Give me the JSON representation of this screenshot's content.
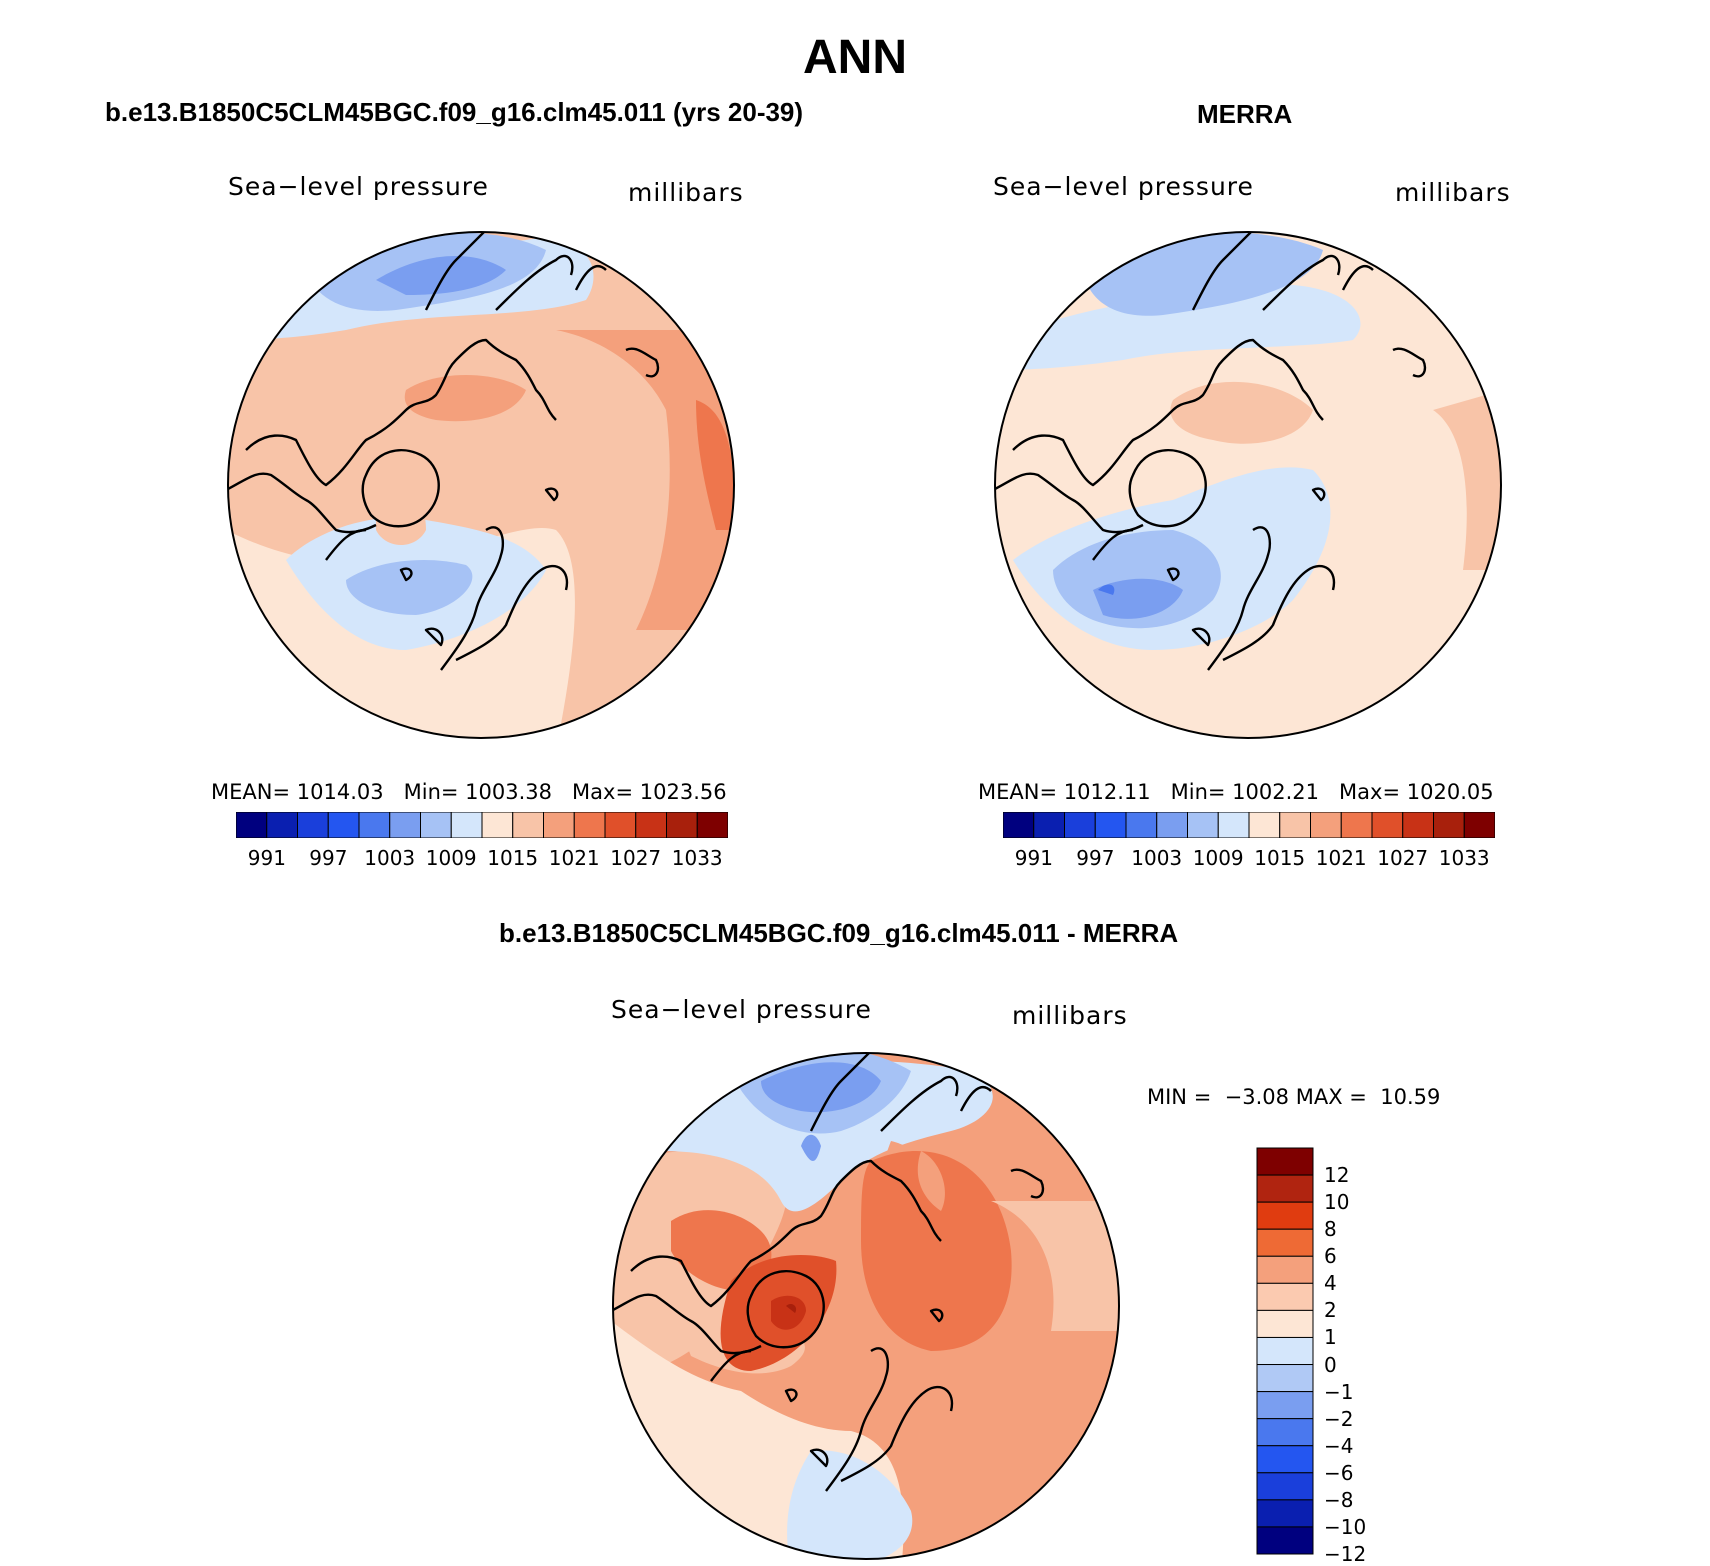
{
  "title": "ANN",
  "panels": [
    {
      "id": "model",
      "heading": "b.e13.B1850C5CLM45BGC.f09_g16.clm45.011 (yrs 20-39)",
      "variable": "Sea−level pressure",
      "units": "millibars",
      "stats": {
        "mean_label": "MEAN=",
        "mean": "1014.03",
        "min_label": "Min=",
        "min": "1003.38",
        "max_label": "Max=",
        "max": "1023.56"
      }
    },
    {
      "id": "obs",
      "heading": "MERRA",
      "variable": "Sea−level pressure",
      "units": "millibars",
      "stats": {
        "mean_label": "MEAN=",
        "mean": "1012.11",
        "min_label": "Min=",
        "min": "1002.21",
        "max_label": "Max=",
        "max": "1020.05"
      }
    },
    {
      "id": "diff",
      "heading": "b.e13.B1850C5CLM45BGC.f09_g16.clm45.011 - MERRA",
      "variable": "Sea−level pressure",
      "units": "millibars",
      "stats": {
        "min_label": "MIN =",
        "min": "−3.08",
        "max_label": "MAX =",
        "max": "10.59"
      }
    }
  ],
  "colorbars": {
    "absolute": {
      "colors": [
        "#00007f",
        "#0a1fb0",
        "#1a3fdb",
        "#2456f0",
        "#4a78ee",
        "#7a9ef0",
        "#a6c2f5",
        "#d4e6fb",
        "#fde6d5",
        "#f8c4a8",
        "#f4a07c",
        "#ee764d",
        "#e0502a",
        "#c83216",
        "#a8200c",
        "#7e0000"
      ],
      "labels": [
        "991",
        "997",
        "1003",
        "1009",
        "1015",
        "1021",
        "1027",
        "1033"
      ]
    },
    "difference": {
      "colors": [
        "#7e0000",
        "#b02410",
        "#e03c10",
        "#ee6a35",
        "#f4a07c",
        "#fbcab0",
        "#fde6d5",
        "#d4e6fb",
        "#b0c9f5",
        "#7a9ef0",
        "#4a78ee",
        "#2456f0",
        "#1a3fdb",
        "#0a1fb0",
        "#00007f"
      ],
      "labels": [
        "12",
        "10",
        "8",
        "6",
        "4",
        "2",
        "1",
        "0",
        "−1",
        "−2",
        "−4",
        "−6",
        "−8",
        "−10",
        "−12"
      ]
    }
  }
}
